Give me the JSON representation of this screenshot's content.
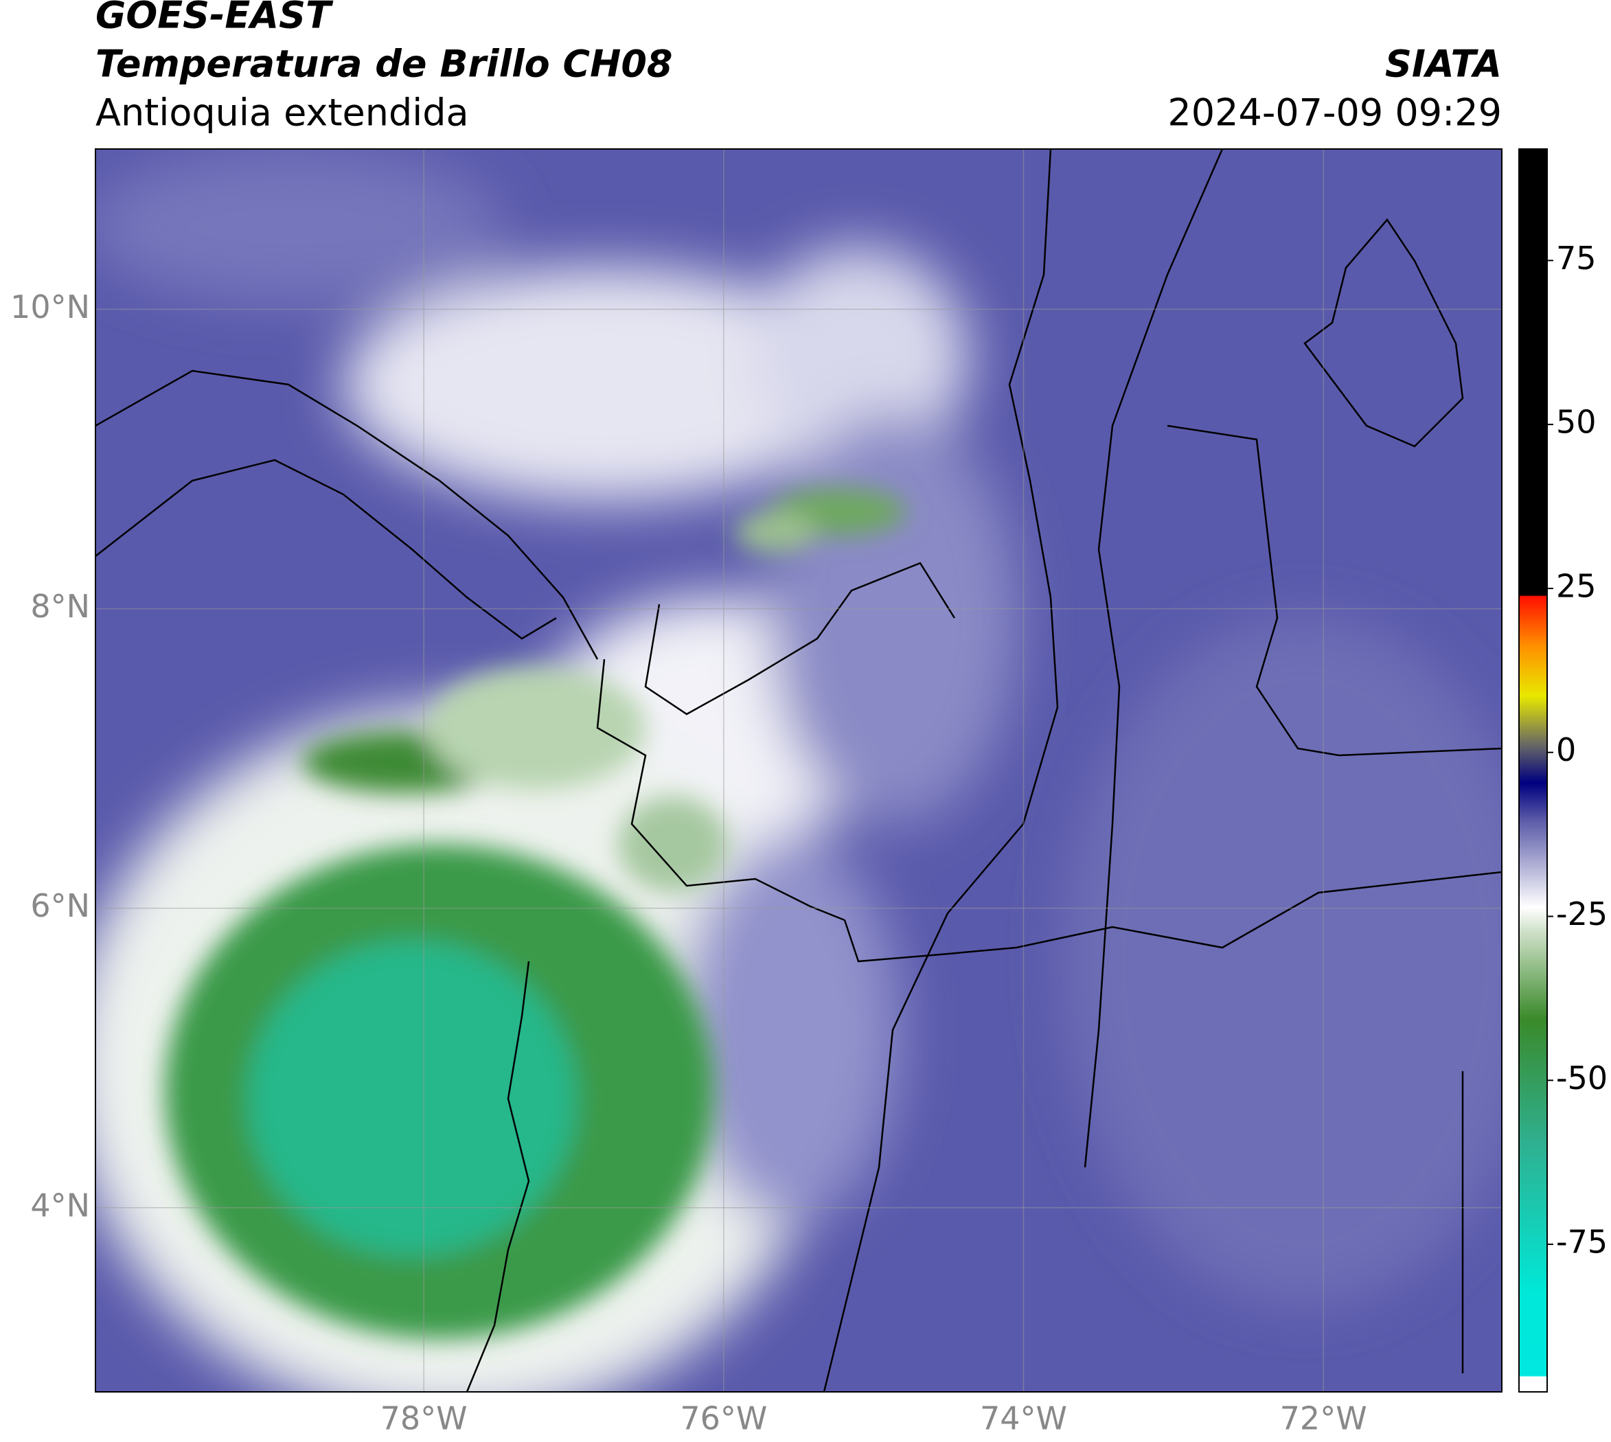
{
  "header": {
    "source": "GOES-EAST",
    "product": "Temperatura de Brillo CH08",
    "region": "Antioquia extendida",
    "org": "SIATA",
    "datetime": "2024-07-09 09:29"
  },
  "map": {
    "xlim": [
      -80.19,
      -70.81
    ],
    "ylim": [
      2.77,
      11.07
    ],
    "xticks": [
      {
        "value": -78,
        "label": "78°W"
      },
      {
        "value": -76,
        "label": "76°W"
      },
      {
        "value": -74,
        "label": "74°W"
      },
      {
        "value": -72,
        "label": "72°W"
      }
    ],
    "yticks": [
      {
        "value": 4,
        "label": "4°N"
      },
      {
        "value": 6,
        "label": "6°N"
      },
      {
        "value": 8,
        "label": "8°N"
      },
      {
        "value": 10,
        "label": "10°N"
      }
    ]
  },
  "colorbar": {
    "clim": [
      -97.5,
      92
    ],
    "ticks": [
      75,
      50,
      25,
      0,
      -25,
      -50,
      -75
    ]
  }
}
